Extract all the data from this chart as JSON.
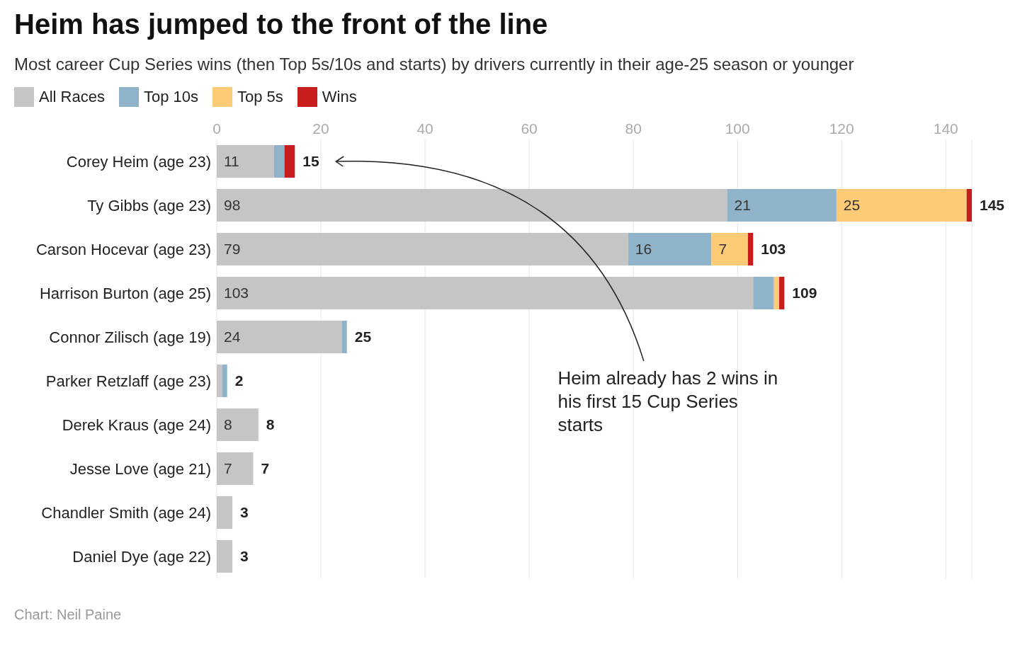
{
  "chart_data": {
    "type": "bar",
    "orientation": "horizontal",
    "stacked": true,
    "title": "Heim has jumped to the front of the line",
    "subtitle": "Most career Cup Series wins (then Top 5s/10s and starts) by drivers currently in their age-25 season or younger",
    "categories": [
      "Corey Heim (age 23)",
      "Ty Gibbs (age 23)",
      "Carson Hocevar (age 23)",
      "Harrison Burton (age 25)",
      "Connor Zilisch (age 19)",
      "Parker Retzlaff (age 23)",
      "Derek Kraus (age 24)",
      "Jesse Love (age 21)",
      "Chandler Smith (age 24)",
      "Daniel Dye (age 22)"
    ],
    "series": [
      {
        "name": "All Races",
        "color": "#c5c5c5",
        "values": [
          11,
          98,
          79,
          103,
          24,
          1,
          8,
          7,
          3,
          3
        ],
        "value_labels": [
          "11",
          "98",
          "79",
          "103",
          "24",
          null,
          "8",
          "7",
          null,
          null
        ]
      },
      {
        "name": "Top 10s",
        "color": "#8fb3c8",
        "values": [
          2,
          21,
          16,
          4,
          1,
          1,
          0,
          0,
          0,
          0
        ],
        "value_labels": [
          null,
          "21",
          "16",
          null,
          null,
          null,
          null,
          null,
          null,
          null
        ]
      },
      {
        "name": "Top 5s",
        "color": "#fdca76",
        "values": [
          0,
          25,
          7,
          1,
          0,
          0,
          0,
          0,
          0,
          0
        ],
        "value_labels": [
          null,
          "25",
          "7",
          null,
          null,
          null,
          null,
          null,
          null,
          null
        ]
      },
      {
        "name": "Wins",
        "color": "#c71e1d",
        "values": [
          2,
          1,
          1,
          1,
          0,
          0,
          0,
          0,
          0,
          0
        ]
      }
    ],
    "totals": [
      "15",
      "145",
      "103",
      "109",
      "25",
      "2",
      "8",
      "7",
      "3",
      "3"
    ],
    "xlim": [
      0,
      145
    ],
    "xticks": [
      0,
      20,
      40,
      60,
      80,
      100,
      120,
      140
    ],
    "grid": "x",
    "legend": "top left",
    "annotations": [
      "Heim already has 2 wins in his first 15 Cup Series starts",
      "Chart: Neil Paine"
    ]
  }
}
